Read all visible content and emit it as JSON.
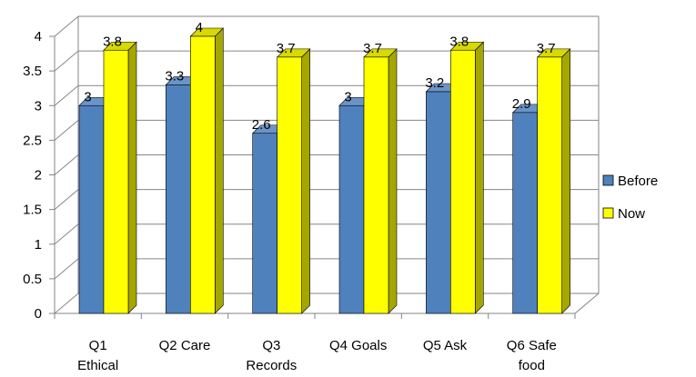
{
  "chart_data": {
    "type": "bar",
    "categories": [
      [
        "Q1",
        "Ethical"
      ],
      [
        "Q2 Care"
      ],
      [
        "Q3",
        "Records"
      ],
      [
        "Q4 Goals"
      ],
      [
        "Q5 Ask"
      ],
      [
        "Q6 Safe",
        "food"
      ]
    ],
    "series": [
      {
        "name": "Before",
        "values": [
          3,
          3.3,
          2.6,
          3,
          3.2,
          2.9
        ],
        "color": "#4F81BD",
        "side_color": "#385D8A",
        "top_color": "#6A94C8"
      },
      {
        "name": "Now",
        "values": [
          3.8,
          4,
          3.7,
          3.7,
          3.8,
          3.7
        ],
        "color": "#FFFF00",
        "side_color": "#A6A600",
        "top_color": "#D9D900"
      }
    ],
    "value_labels": [
      [
        "3",
        "3.3",
        "2.6",
        "3",
        "3.2",
        "2.9"
      ],
      [
        "3.8",
        "4",
        "3.7",
        "3.7",
        "3.8",
        "3.7"
      ]
    ],
    "ylim": [
      0,
      4
    ],
    "yticks": [
      "0",
      "0.5",
      "1",
      "1.5",
      "2",
      "2.5",
      "3",
      "3.5",
      "4"
    ],
    "grid": true,
    "legend": "right",
    "title": "",
    "xlabel": "",
    "ylabel": ""
  }
}
